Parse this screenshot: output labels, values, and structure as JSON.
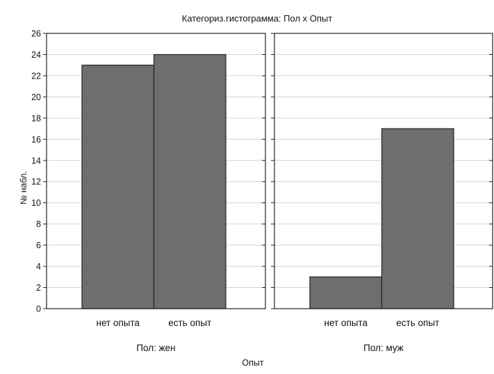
{
  "chart_data": {
    "type": "bar",
    "title": "Категориз.гистограмма: Пол x Опыт",
    "xlabel": "Опыт",
    "ylabel": "№ набл.",
    "ylim": [
      0,
      26
    ],
    "yticks": [
      0,
      2,
      4,
      6,
      8,
      10,
      12,
      14,
      16,
      18,
      20,
      22,
      24,
      26
    ],
    "grid": true,
    "categories": [
      "нет опыта",
      "есть опыт"
    ],
    "bar_color": "#6e6e6e",
    "panels": [
      {
        "label": "Пол: жен",
        "values": [
          23,
          24
        ]
      },
      {
        "label": "Пол: муж",
        "values": [
          3,
          17
        ]
      }
    ]
  }
}
